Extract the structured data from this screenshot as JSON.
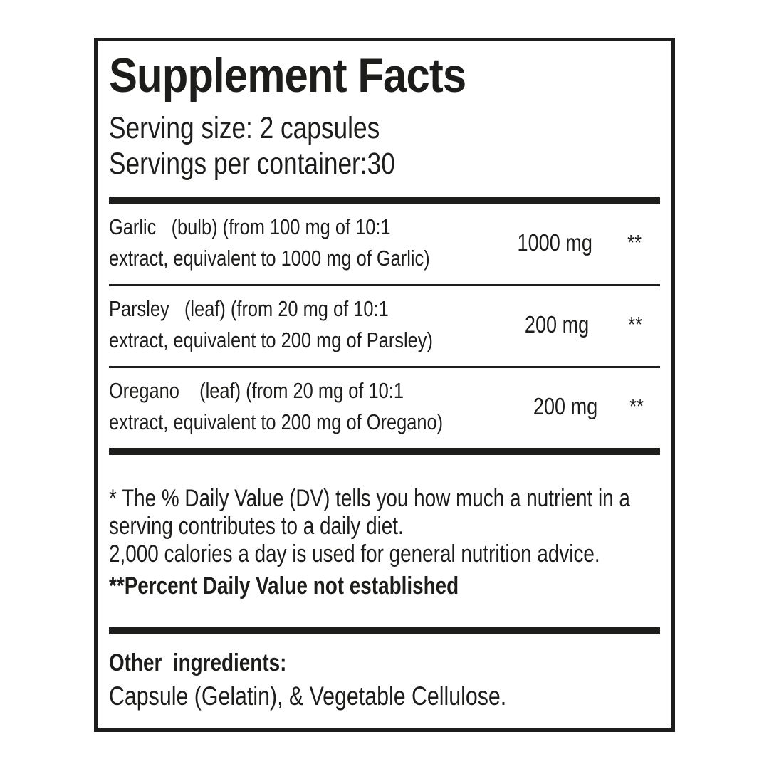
{
  "panel": {
    "title": "Supplement Facts",
    "serving_size_line": "Serving size: 2 capsules",
    "servings_per_container_line": "Servings per container:30"
  },
  "rows": [
    {
      "line1": "Garlic   (bulb) (from 100 mg of 10:1",
      "line2": "extract, equivalent to 1000 mg of Garlic)",
      "amount": "1000 mg",
      "daily_value": "**"
    },
    {
      "line1": "Parsley   (leaf) (from 20 mg of 10:1",
      "line2": "extract, equivalent to 200 mg of Parsley)",
      "amount": "200 mg",
      "daily_value": "**"
    },
    {
      "line1": "Oregano    (leaf) (from 20 mg of 10:1",
      "line2": "extract, equivalent to 200 mg of Oregano)",
      "amount": "200 mg",
      "daily_value": "**"
    }
  ],
  "footnote": {
    "line1": "* The % Daily Value (DV) tells you how much a nutrient in a",
    "line2": "serving contributes to a daily diet.",
    "line3": "2,000 calories a day is used for general nutrition advice.",
    "not_established": "**Percent Daily Value not established"
  },
  "other_ingredients": {
    "heading": "Other  ingredients:",
    "value": "Capsule (Gelatin), & Vegetable Cellulose."
  },
  "colors": {
    "ink": "#1d1d1b",
    "background": "#ffffff"
  }
}
